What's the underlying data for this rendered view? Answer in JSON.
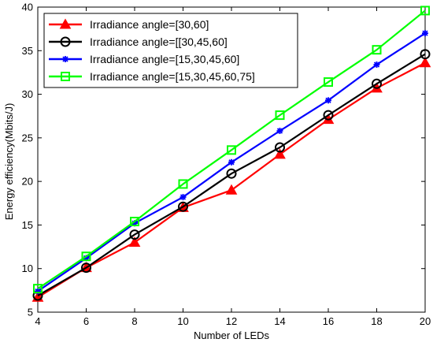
{
  "chart_data": {
    "type": "line",
    "title": "",
    "xlabel": "Number of LEDs",
    "ylabel": "Energy efficiency(Mbits/J)",
    "xlim": [
      4,
      20
    ],
    "ylim": [
      5,
      40
    ],
    "xticks": [
      4,
      6,
      8,
      10,
      12,
      14,
      16,
      18,
      20
    ],
    "yticks": [
      5,
      10,
      15,
      20,
      25,
      30,
      35,
      40
    ],
    "grid": false,
    "legend_position": "top-left",
    "x": [
      4,
      6,
      8,
      10,
      12,
      14,
      16,
      18,
      20
    ],
    "series": [
      {
        "name": "Irradiance angle=[30,60]",
        "color": "#ff0000",
        "marker": "triangle",
        "values": [
          6.7,
          10.1,
          13.0,
          17.0,
          19.0,
          23.1,
          27.1,
          30.7,
          33.6
        ]
      },
      {
        "name": "Irradiance angle=[[30,45,60]",
        "color": "#000000",
        "marker": "circle",
        "values": [
          6.9,
          10.1,
          13.9,
          17.1,
          20.9,
          23.9,
          27.6,
          31.2,
          34.6
        ]
      },
      {
        "name": "Irradiance angle=[15,30,45,60]",
        "color": "#0000ff",
        "marker": "star",
        "values": [
          7.4,
          11.2,
          15.2,
          18.2,
          22.2,
          25.8,
          29.3,
          33.4,
          37.0
        ]
      },
      {
        "name": "Irradiance angle=[15,30,45,60,75]",
        "color": "#00ff00",
        "marker": "square",
        "values": [
          7.7,
          11.4,
          15.4,
          19.7,
          23.6,
          27.6,
          31.4,
          35.1,
          39.6
        ]
      }
    ]
  }
}
